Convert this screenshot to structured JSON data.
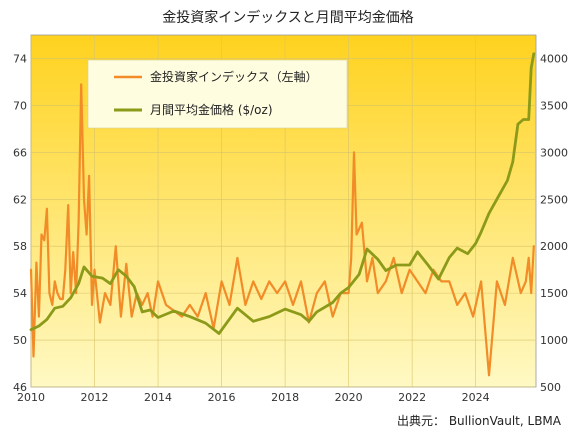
{
  "chart_data": {
    "type": "line",
    "title": "金投資家インデックスと月間平均金価格",
    "source": "出典元： BullionVault, LBMA",
    "x_ticks": [
      "2010",
      "2012",
      "2014",
      "2016",
      "2018",
      "2020",
      "2022",
      "2024"
    ],
    "xlim": [
      2010.0,
      2025.9
    ],
    "y_left": {
      "ticks": [
        "46",
        "50",
        "54",
        "58",
        "62",
        "66",
        "70",
        "74"
      ],
      "ylim": [
        46,
        76
      ]
    },
    "y_right": {
      "ticks": [
        "500",
        "1000",
        "1500",
        "2000",
        "2500",
        "3000",
        "3500",
        "4000"
      ],
      "ylim": [
        500,
        4250
      ]
    },
    "grid": true,
    "legend_position": "top-left",
    "series": [
      {
        "name": "金投資家インデックス（左軸）",
        "axis": "left",
        "color": "#f28c28",
        "x": [
          2010.0,
          2010.08,
          2010.17,
          2010.25,
          2010.33,
          2010.42,
          2010.5,
          2010.58,
          2010.67,
          2010.75,
          2010.83,
          2010.92,
          2011.0,
          2011.08,
          2011.17,
          2011.25,
          2011.33,
          2011.42,
          2011.5,
          2011.58,
          2011.67,
          2011.75,
          2011.83,
          2011.92,
          2012.0,
          2012.17,
          2012.33,
          2012.5,
          2012.67,
          2012.83,
          2013.0,
          2013.17,
          2013.33,
          2013.5,
          2013.67,
          2013.83,
          2014.0,
          2014.25,
          2014.5,
          2014.75,
          2015.0,
          2015.25,
          2015.5,
          2015.75,
          2016.0,
          2016.25,
          2016.5,
          2016.75,
          2017.0,
          2017.25,
          2017.5,
          2017.75,
          2018.0,
          2018.25,
          2018.5,
          2018.75,
          2019.0,
          2019.25,
          2019.5,
          2019.75,
          2020.0,
          2020.08,
          2020.17,
          2020.25,
          2020.42,
          2020.58,
          2020.75,
          2020.92,
          2021.17,
          2021.42,
          2021.67,
          2021.92,
          2022.17,
          2022.42,
          2022.67,
          2022.92,
          2023.17,
          2023.42,
          2023.67,
          2023.92,
          2024.17,
          2024.42,
          2024.67,
          2024.92,
          2025.17,
          2025.42,
          2025.58,
          2025.67,
          2025.75,
          2025.83
        ],
        "values": [
          56,
          48.6,
          56.6,
          52,
          59,
          58.5,
          61.2,
          54,
          53,
          55,
          54,
          53.5,
          53.5,
          56,
          61.5,
          54,
          57.5,
          54,
          60,
          71.8,
          62,
          59,
          64,
          53,
          56,
          51.5,
          54,
          53,
          58,
          52,
          56.5,
          52,
          54,
          53,
          54,
          52,
          55,
          53,
          52.5,
          52,
          53,
          52,
          54,
          51,
          55,
          53,
          57,
          53,
          55,
          53.5,
          55,
          54,
          55,
          53,
          55,
          51.5,
          54,
          55,
          52,
          54,
          54,
          57,
          66,
          59,
          60,
          55,
          57,
          54,
          55,
          57,
          54,
          56,
          55,
          54,
          56,
          55,
          55,
          53,
          54,
          52,
          55,
          47,
          55,
          53,
          57,
          54,
          55,
          57,
          54,
          58
        ]
      },
      {
        "name": "月間平均金価格 ($/oz)",
        "axis": "right",
        "color": "#8c9a1a",
        "x": [
          2010.0,
          2010.25,
          2010.5,
          2010.75,
          2011.0,
          2011.25,
          2011.5,
          2011.67,
          2011.92,
          2012.25,
          2012.5,
          2012.75,
          2013.0,
          2013.25,
          2013.5,
          2013.75,
          2014.0,
          2014.5,
          2015.0,
          2015.5,
          2015.92,
          2016.5,
          2017.0,
          2017.5,
          2018.0,
          2018.5,
          2018.75,
          2019.0,
          2019.5,
          2019.75,
          2020.0,
          2020.33,
          2020.58,
          2020.92,
          2021.17,
          2021.5,
          2021.92,
          2022.17,
          2022.5,
          2022.83,
          2023.17,
          2023.42,
          2023.75,
          2024.0,
          2024.17,
          2024.42,
          2024.75,
          2025.0,
          2025.17,
          2025.33,
          2025.5,
          2025.67,
          2025.75,
          2025.83
        ],
        "values": [
          1110,
          1150,
          1220,
          1340,
          1360,
          1450,
          1600,
          1780,
          1680,
          1660,
          1600,
          1750,
          1680,
          1570,
          1300,
          1320,
          1240,
          1310,
          1250,
          1180,
          1070,
          1340,
          1200,
          1250,
          1330,
          1270,
          1200,
          1300,
          1400,
          1500,
          1560,
          1700,
          1970,
          1860,
          1740,
          1800,
          1800,
          1940,
          1800,
          1650,
          1880,
          1980,
          1920,
          2030,
          2150,
          2350,
          2550,
          2700,
          2900,
          3300,
          3350,
          3350,
          3900,
          4050
        ]
      }
    ]
  }
}
